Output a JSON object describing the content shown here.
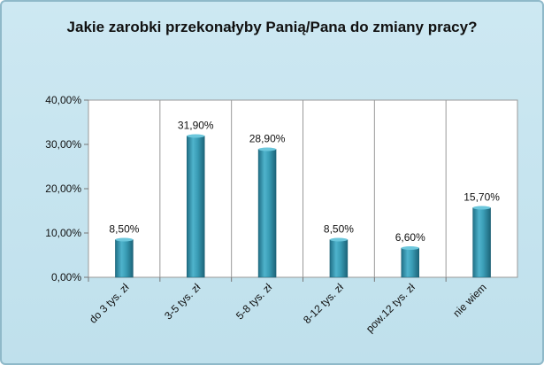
{
  "chart_data": {
    "type": "bar",
    "title": "Jakie zarobki przekonałyby Panią/Pana  do zmiany pracy?",
    "categories": [
      "do 3 tys. zł",
      "3-5 tys. zł",
      "5-8 tys. zł",
      "8-12 tys. zł",
      "pow.12 tys. zł",
      "nie wiem"
    ],
    "values": [
      8.5,
      31.9,
      28.9,
      8.5,
      6.6,
      15.7
    ],
    "data_labels": [
      "8,50%",
      "31,90%",
      "28,90%",
      "8,50%",
      "6,60%",
      "15,70%"
    ],
    "y_ticks": [
      "0,00%",
      "10,00%",
      "20,00%",
      "30,00%",
      "40,00%"
    ],
    "ylim": [
      0,
      40
    ],
    "grid": false,
    "colors": {
      "bar": "#2f8fa8",
      "plot_bg": "#ffffff",
      "frame_bg": "#c6e4ef"
    }
  }
}
